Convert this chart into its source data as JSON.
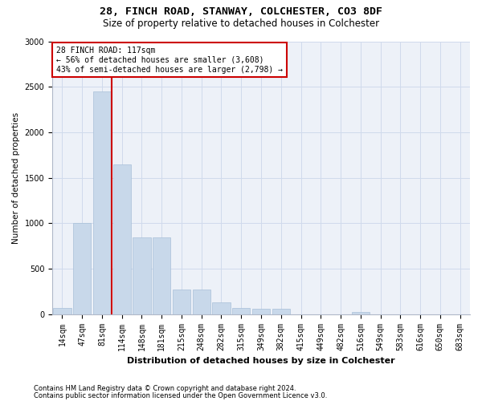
{
  "title1": "28, FINCH ROAD, STANWAY, COLCHESTER, CO3 8DF",
  "title2": "Size of property relative to detached houses in Colchester",
  "xlabel": "Distribution of detached houses by size in Colchester",
  "ylabel": "Number of detached properties",
  "categories": [
    "14sqm",
    "47sqm",
    "81sqm",
    "114sqm",
    "148sqm",
    "181sqm",
    "215sqm",
    "248sqm",
    "282sqm",
    "315sqm",
    "349sqm",
    "382sqm",
    "415sqm",
    "449sqm",
    "482sqm",
    "516sqm",
    "549sqm",
    "583sqm",
    "616sqm",
    "650sqm",
    "683sqm"
  ],
  "values": [
    70,
    1000,
    2450,
    1650,
    840,
    840,
    270,
    270,
    130,
    65,
    60,
    55,
    0,
    0,
    0,
    28,
    0,
    0,
    0,
    0,
    0
  ],
  "bar_color": "#c8d8ea",
  "bar_edgecolor": "#a8c0d8",
  "vline_index": 2,
  "annotation_text": "28 FINCH ROAD: 117sqm\n← 56% of detached houses are smaller (3,608)\n43% of semi-detached houses are larger (2,798) →",
  "annotation_box_color": "#ffffff",
  "annotation_box_edgecolor": "#cc0000",
  "vline_color": "#cc0000",
  "footer1": "Contains HM Land Registry data © Crown copyright and database right 2024.",
  "footer2": "Contains public sector information licensed under the Open Government Licence v3.0.",
  "ylim": [
    0,
    3000
  ],
  "yticks": [
    0,
    500,
    1000,
    1500,
    2000,
    2500,
    3000
  ],
  "grid_color": "#d0daec",
  "bg_color": "#edf1f8",
  "title1_fontsize": 9.5,
  "title2_fontsize": 8.5,
  "xlabel_fontsize": 8,
  "ylabel_fontsize": 7.5,
  "tick_fontsize": 7,
  "footer_fontsize": 6,
  "annot_fontsize": 7
}
